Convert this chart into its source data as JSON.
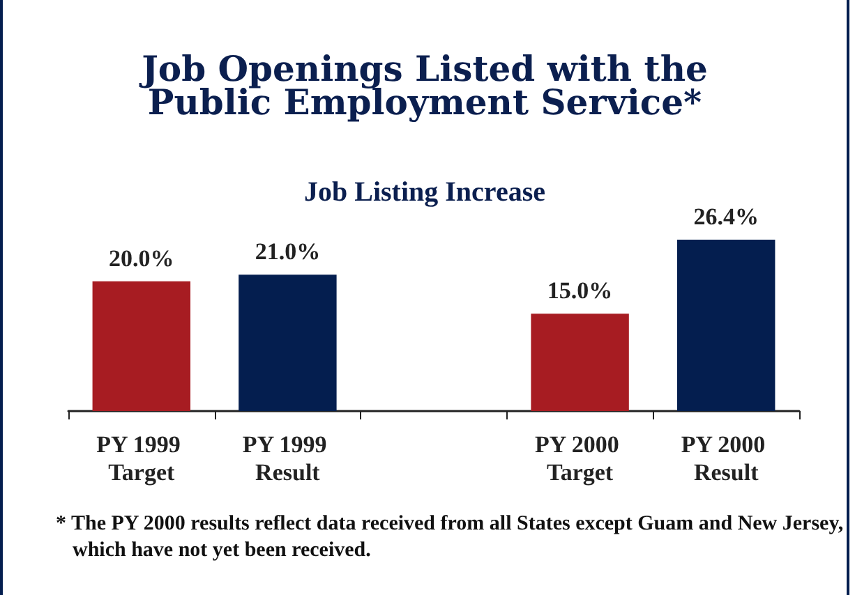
{
  "chart_data": {
    "type": "bar",
    "title": "Job Openings Listed with the Public Employment Service*",
    "subtitle": "Job Listing Increase",
    "categories": [
      "PY 1999 Target",
      "PY 1999 Result",
      null,
      "PY 2000 Target",
      "PY 2000 Result"
    ],
    "values": [
      20.0,
      21.0,
      null,
      15.0,
      26.4
    ],
    "value_labels": [
      "20.0%",
      "21.0%",
      null,
      "15.0%",
      "26.4%"
    ],
    "colors": [
      "#a71c22",
      "#041e4f",
      null,
      "#a71c22",
      "#041e4f"
    ],
    "annotations": [
      "* The PY 2000 results reflect data received from all States except Guam and New Jersey, which have not yet been received."
    ]
  }
}
